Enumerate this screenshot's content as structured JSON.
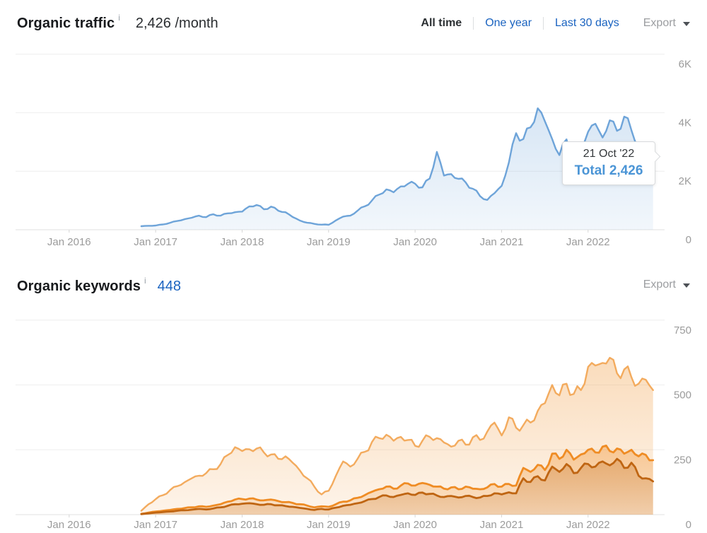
{
  "traffic_section": {
    "title": "Organic traffic",
    "info": "i",
    "value": "2,426 /month",
    "tabs": {
      "all_time": "All time",
      "one_year": "One year",
      "last_30": "Last 30 days"
    },
    "export_label": "Export",
    "tooltip": {
      "date": "21 Oct '22",
      "total": "Total 2,426"
    }
  },
  "keywords_section": {
    "title": "Organic keywords",
    "info": "i",
    "count": "448",
    "export_label": "Export"
  },
  "colors": {
    "link_blue": "#1a63c0",
    "traffic_line": "#6ea4d9",
    "keywords_light": "#f3ab5e",
    "keywords_mid": "#ef8c24",
    "keywords_dark": "#bf6512",
    "axis_label": "#9b9b9b",
    "gridline": "#ededed",
    "tooltip_value": "#4b95d6"
  },
  "chart_data": [
    {
      "type": "area",
      "title": "Organic traffic",
      "x_start": "Nov 2016",
      "interval": "monthly",
      "x_tick_labels": [
        "Jan 2016",
        "Jan 2017",
        "Jan 2018",
        "Jan 2019",
        "Jan 2020",
        "Jan 2021",
        "Jan 2022"
      ],
      "y_ticks": [
        {
          "label": "6K",
          "value": 6000
        },
        {
          "label": "4K",
          "value": 4000
        },
        {
          "label": "2K",
          "value": 2000
        },
        {
          "label": "0",
          "value": 0
        }
      ],
      "ylim": [
        0,
        6300
      ],
      "legend": "none",
      "annotation": {
        "date": "21 Oct '22",
        "label": "Total 2,426",
        "value": 2426
      },
      "series": [
        {
          "name": "organic-traffic",
          "color": "#6ea4d9",
          "values": [
            120,
            135,
            145,
            180,
            240,
            300,
            360,
            410,
            480,
            430,
            530,
            480,
            560,
            600,
            620,
            800,
            845,
            700,
            790,
            650,
            600,
            435,
            315,
            240,
            200,
            175,
            170,
            320,
            450,
            480,
            650,
            800,
            1000,
            1200,
            1380,
            1280,
            1480,
            1570,
            1570,
            1450,
            1750,
            2660,
            1850,
            1900,
            1740,
            1620,
            1400,
            1150,
            1020,
            1250,
            1500,
            2300,
            3300,
            3100,
            3500,
            4150,
            3700,
            3100,
            2550,
            3090,
            2350,
            2900,
            3350,
            3620,
            3150,
            3740,
            3380,
            3865,
            3400,
            2900,
            2500,
            2426
          ]
        }
      ]
    },
    {
      "type": "area",
      "title": "Organic keywords",
      "x_start": "Nov 2016",
      "interval": "monthly",
      "x_tick_labels": [
        "Jan 2016",
        "Jan 2017",
        "Jan 2018",
        "Jan 2019",
        "Jan 2020",
        "Jan 2021",
        "Jan 2022"
      ],
      "y_ticks": [
        {
          "label": "750",
          "value": 750
        },
        {
          "label": "500",
          "value": 500
        },
        {
          "label": "250",
          "value": 250
        },
        {
          "label": "0",
          "value": 0
        }
      ],
      "ylim": [
        0,
        790
      ],
      "legend": "none",
      "series": [
        {
          "name": "keywords-light-orange",
          "color": "#f3ab5e",
          "values": [
            15,
            40,
            60,
            75,
            95,
            110,
            125,
            140,
            150,
            160,
            175,
            195,
            230,
            260,
            245,
            252,
            255,
            240,
            232,
            215,
            225,
            200,
            170,
            140,
            108,
            78,
            92,
            150,
            205,
            185,
            215,
            242,
            280,
            295,
            308,
            285,
            300,
            288,
            265,
            285,
            300,
            295,
            278,
            262,
            285,
            270,
            298,
            288,
            320,
            355,
            305,
            375,
            335,
            345,
            355,
            400,
            430,
            500,
            460,
            505,
            465,
            480,
            570,
            575,
            585,
            605,
            545,
            560,
            530,
            505,
            520,
            480
          ]
        },
        {
          "name": "keywords-mid-orange",
          "color": "#ef8c24",
          "values": [
            3,
            8,
            12,
            15,
            18,
            22,
            25,
            28,
            32,
            30,
            35,
            40,
            50,
            58,
            60,
            62,
            58,
            55,
            58,
            52,
            48,
            45,
            40,
            35,
            28,
            32,
            30,
            40,
            50,
            55,
            65,
            75,
            88,
            98,
            108,
            100,
            112,
            120,
            112,
            122,
            115,
            108,
            100,
            105,
            98,
            108,
            100,
            98,
            105,
            118,
            108,
            118,
            112,
            180,
            165,
            192,
            172,
            235,
            215,
            250,
            212,
            232,
            250,
            240,
            262,
            245,
            255,
            235,
            250,
            225,
            230,
            210
          ]
        },
        {
          "name": "keywords-dark-orange",
          "color": "#bf6512",
          "values": [
            2,
            5,
            8,
            10,
            12,
            15,
            17,
            19,
            22,
            20,
            24,
            28,
            34,
            40,
            42,
            44,
            40,
            38,
            40,
            36,
            33,
            30,
            26,
            22,
            18,
            22,
            20,
            27,
            34,
            38,
            44,
            52,
            60,
            68,
            74,
            68,
            76,
            82,
            76,
            85,
            80,
            74,
            68,
            72,
            66,
            72,
            68,
            66,
            72,
            82,
            78,
            86,
            82,
            140,
            126,
            148,
            132,
            185,
            165,
            195,
            160,
            180,
            195,
            185,
            205,
            190,
            215,
            180,
            200,
            150,
            140,
            128
          ]
        }
      ]
    }
  ]
}
